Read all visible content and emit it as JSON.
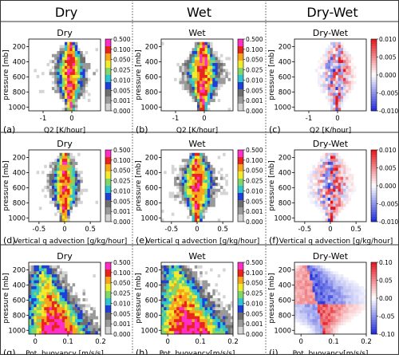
{
  "figure": {
    "column_headers": [
      "Dry",
      "Wet",
      "Dry-Wet"
    ],
    "colors": {
      "seq": [
        "#ffffff",
        "#d4d4d4",
        "#9a9a9a",
        "#6e6e6e",
        "#1f3fd6",
        "#2ec4d0",
        "#7fd66a",
        "#f2ea2c",
        "#f7a51c",
        "#e8241c",
        "#ff2ec8"
      ],
      "div_neg": "#1e2ad8",
      "div_pos": "#e3141c",
      "div_mid": "#ffffff"
    },
    "seq_cbar_ticks": [
      "0.500",
      "0.100",
      "0.050",
      "0.025",
      "0.010",
      "0.005",
      "0.001",
      "0.000"
    ]
  },
  "chart_data": [
    {
      "type": "heatmap",
      "panel_label": "(a)",
      "title": "Dry",
      "xlabel": "Q2 [K/hour]",
      "ylabel": "pressure [mb]",
      "xlim": [
        -1.5,
        1.0
      ],
      "xticks": [
        -1,
        0
      ],
      "ylim": [
        1050,
        100
      ],
      "yticks": [
        200,
        400,
        600,
        800,
        1000
      ],
      "colorbar": "sequential",
      "cbar_ticks": [
        "0.500",
        "0.100",
        "0.050",
        "0.025",
        "0.010",
        "0.005",
        "0.001",
        "0.000"
      ],
      "center_x": -0.05,
      "spread": 0.35,
      "center_slope": 0
    },
    {
      "type": "heatmap",
      "panel_label": "(b)",
      "title": "Wet",
      "xlabel": "Q2 [K/hour]",
      "ylabel": "pressure [mb]",
      "xlim": [
        -1.5,
        1.0
      ],
      "xticks": [
        -1,
        0
      ],
      "ylim": [
        1050,
        100
      ],
      "yticks": [
        200,
        400,
        600,
        800,
        1000
      ],
      "colorbar": "sequential",
      "cbar_ticks": [
        "0.500",
        "0.100",
        "0.050",
        "0.025",
        "0.010",
        "0.005",
        "0.001",
        "0.000"
      ],
      "center_x": -0.05,
      "spread": 0.4,
      "center_slope": 0
    },
    {
      "type": "heatmap",
      "panel_label": "(c)",
      "title": "Dry-Wet",
      "xlabel": "Q2 [K/hour]",
      "ylabel": "pressure [mb]",
      "xlim": [
        -1.5,
        1.0
      ],
      "xticks": [
        -1,
        0
      ],
      "ylim": [
        1050,
        100
      ],
      "yticks": [
        200,
        400,
        600,
        800,
        1000
      ],
      "colorbar": "diverging",
      "cbar_ticks": [
        "0.010",
        "0.005",
        "0.000",
        "-0.005",
        "-0.010"
      ],
      "center_x": -0.05,
      "spread": 0.3,
      "center_slope": 0
    },
    {
      "type": "heatmap",
      "panel_label": "(d)",
      "title": "Dry",
      "xlabel": "Vertical q advection [g/kg/hour]",
      "ylabel": "pressure [mb]",
      "xlim": [
        -0.7,
        0.7
      ],
      "xticks": [
        -0.5,
        0.0,
        0.5
      ],
      "ylim": [
        1050,
        100
      ],
      "yticks": [
        200,
        400,
        600,
        800,
        1000
      ],
      "colorbar": "sequential",
      "cbar_ticks": [
        "0.500",
        "0.100",
        "0.050",
        "0.025",
        "0.010",
        "0.005",
        "0.001",
        "0.000"
      ],
      "center_x": 0.0,
      "spread": 0.18,
      "center_slope": 0
    },
    {
      "type": "heatmap",
      "panel_label": "(e)",
      "title": "Wet",
      "xlabel": "Vertical q advection [g/kg/hour]",
      "ylabel": "pressure [mb]",
      "xlim": [
        -0.7,
        0.7
      ],
      "xticks": [
        -0.5,
        0.0,
        0.5
      ],
      "ylim": [
        1050,
        100
      ],
      "yticks": [
        200,
        400,
        600,
        800,
        1000
      ],
      "colorbar": "sequential",
      "cbar_ticks": [
        "0.500",
        "0.100",
        "0.050",
        "0.025",
        "0.010",
        "0.005",
        "0.001",
        "0.000"
      ],
      "center_x": 0.0,
      "spread": 0.22,
      "center_slope": 0
    },
    {
      "type": "heatmap",
      "panel_label": "(f)",
      "title": "Dry-Wet",
      "xlabel": "Vertical q advection [g/kg/hour]",
      "ylabel": "pressure [mb]",
      "xlim": [
        -0.7,
        0.7
      ],
      "xticks": [
        -0.5,
        0.0,
        0.5
      ],
      "ylim": [
        1050,
        100
      ],
      "yticks": [
        200,
        400,
        600,
        800,
        1000
      ],
      "colorbar": "diverging",
      "cbar_ticks": [
        "0.010",
        "0.005",
        "0.000",
        "-0.005",
        "-0.010"
      ],
      "center_x": 0.0,
      "spread": 0.2,
      "center_slope": 0
    },
    {
      "type": "heatmap",
      "panel_label": "(g)",
      "title": "Dry",
      "xlabel": "Pot. buoyancy [m/s/s]",
      "ylabel": "pressure [mb]",
      "xlim": [
        -0.02,
        0.2
      ],
      "xticks": [
        0.0,
        0.1,
        0.2
      ],
      "ylim": [
        1050,
        100
      ],
      "yticks": [
        200,
        400,
        600,
        800,
        1000
      ],
      "colorbar": "sequential",
      "cbar_ticks": [
        "0.500",
        "0.100",
        "0.050",
        "0.025",
        "0.010",
        "0.005",
        "0.001",
        "0.000"
      ],
      "center_x": 0.02,
      "spread": 0.06,
      "center_slope": 0.05
    },
    {
      "type": "heatmap",
      "panel_label": "(h)",
      "title": "Wet",
      "xlabel": "Pot. buoyancy[m/s/s]",
      "ylabel": "pressure [mb]",
      "xlim": [
        -0.02,
        0.2
      ],
      "xticks": [
        0.0,
        0.1,
        0.2
      ],
      "ylim": [
        1050,
        100
      ],
      "yticks": [
        200,
        400,
        600,
        800,
        1000
      ],
      "colorbar": "sequential",
      "cbar_ticks": [
        "0.500",
        "0.100",
        "0.050",
        "0.025",
        "0.010",
        "0.005",
        "0.001",
        "0.000"
      ],
      "center_x": 0.02,
      "spread": 0.07,
      "center_slope": 0.05
    },
    {
      "type": "heatmap",
      "panel_label": "(i)",
      "title": "Dry-Wet",
      "xlabel": "Pot. buoyancy[m/s/s]",
      "ylabel": "pressure [mb]",
      "xlim": [
        -0.02,
        0.2
      ],
      "xticks": [
        0.0,
        0.1,
        0.2
      ],
      "ylim": [
        1050,
        100
      ],
      "yticks": [
        200,
        400,
        600,
        800,
        1000
      ],
      "colorbar": "diverging",
      "cbar_ticks": [
        "0.10",
        "0.05",
        "0.00",
        "-0.05",
        "-0.10"
      ],
      "center_x": 0.02,
      "spread": 0.07,
      "center_slope": 0.05
    }
  ]
}
